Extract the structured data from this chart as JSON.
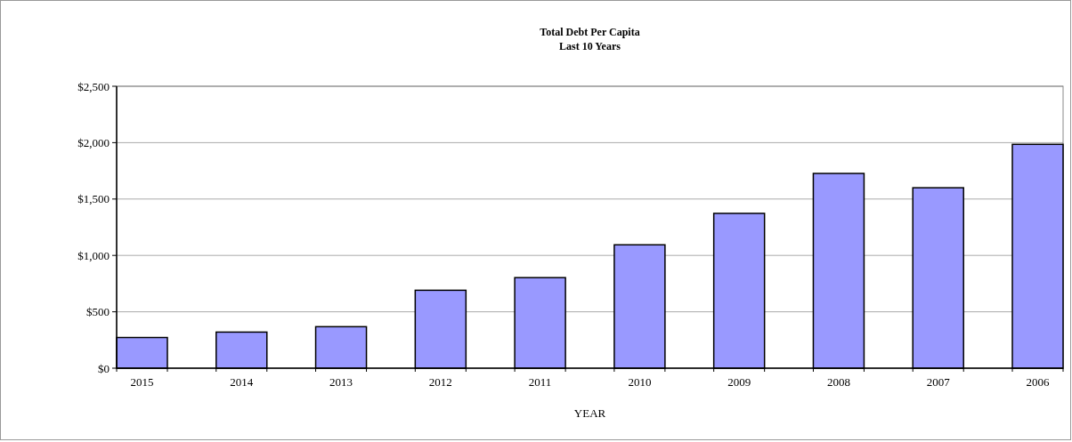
{
  "chart_data": {
    "type": "bar",
    "title": "Total Debt Per Capita",
    "subtitle": "Last 10 Years",
    "xlabel": "YEAR",
    "categories": [
      "2015",
      "2014",
      "2013",
      "2012",
      "2011",
      "2010",
      "2009",
      "2008",
      "2007",
      "2006"
    ],
    "values": [
      272,
      320,
      368,
      691,
      803,
      1094,
      1373,
      1727,
      1600,
      1985
    ],
    "color": "#9999ff",
    "ylim": [
      0,
      2500
    ],
    "yticks": [
      {
        "value": 0,
        "label": "$0"
      },
      {
        "value": 500,
        "label": "$500"
      },
      {
        "value": 1000,
        "label": "$1,000"
      },
      {
        "value": 1500,
        "label": "$1,500"
      },
      {
        "value": 2000,
        "label": "$2,000"
      },
      {
        "value": 2500,
        "label": "$2,500"
      }
    ],
    "grid": "y"
  }
}
